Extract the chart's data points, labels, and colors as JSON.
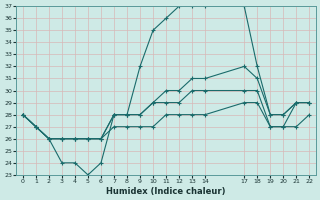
{
  "xlabel": "Humidex (Indice chaleur)",
  "bg_color": "#ceeae6",
  "line_color": "#1a6b6b",
  "grid_color": "#b8d8d4",
  "ylim": [
    23,
    37
  ],
  "xlim": [
    -0.5,
    22.5
  ],
  "yticks": [
    23,
    24,
    25,
    26,
    27,
    28,
    29,
    30,
    31,
    32,
    33,
    34,
    35,
    36,
    37
  ],
  "xticks": [
    0,
    1,
    2,
    3,
    4,
    5,
    6,
    7,
    8,
    9,
    10,
    11,
    12,
    13,
    14,
    17,
    18,
    19,
    20,
    21,
    22
  ],
  "curve1_x": [
    0,
    1,
    2,
    3,
    4,
    5,
    6,
    7,
    8,
    9,
    10,
    11,
    12,
    13,
    14,
    17,
    18,
    19,
    20,
    21,
    22
  ],
  "curve1_y": [
    28,
    27,
    26,
    24,
    24,
    23,
    24,
    28,
    28,
    32,
    35,
    36,
    37,
    37,
    37,
    37,
    32,
    28,
    28,
    29,
    29
  ],
  "curve2_x": [
    0,
    1,
    2,
    3,
    4,
    5,
    6,
    7,
    8,
    9,
    10,
    11,
    12,
    13,
    14,
    17,
    18,
    19,
    20,
    21,
    22
  ],
  "curve2_y": [
    28,
    27,
    26,
    26,
    26,
    26,
    26,
    28,
    28,
    28,
    29,
    30,
    30,
    31,
    31,
    32,
    31,
    28,
    28,
    29,
    29
  ],
  "curve3_x": [
    0,
    1,
    2,
    3,
    4,
    5,
    6,
    7,
    8,
    9,
    10,
    11,
    12,
    13,
    14,
    17,
    18,
    19,
    20,
    21,
    22
  ],
  "curve3_y": [
    28,
    27,
    26,
    26,
    26,
    26,
    26,
    28,
    28,
    28,
    29,
    29,
    29,
    30,
    30,
    30,
    30,
    27,
    27,
    29,
    29
  ],
  "curve4_x": [
    0,
    1,
    2,
    3,
    4,
    5,
    6,
    7,
    8,
    9,
    10,
    11,
    12,
    13,
    14,
    17,
    18,
    19,
    20,
    21,
    22
  ],
  "curve4_y": [
    28,
    27,
    26,
    26,
    26,
    26,
    26,
    27,
    27,
    27,
    27,
    28,
    28,
    28,
    28,
    29,
    29,
    27,
    27,
    27,
    28
  ],
  "marker": "+"
}
